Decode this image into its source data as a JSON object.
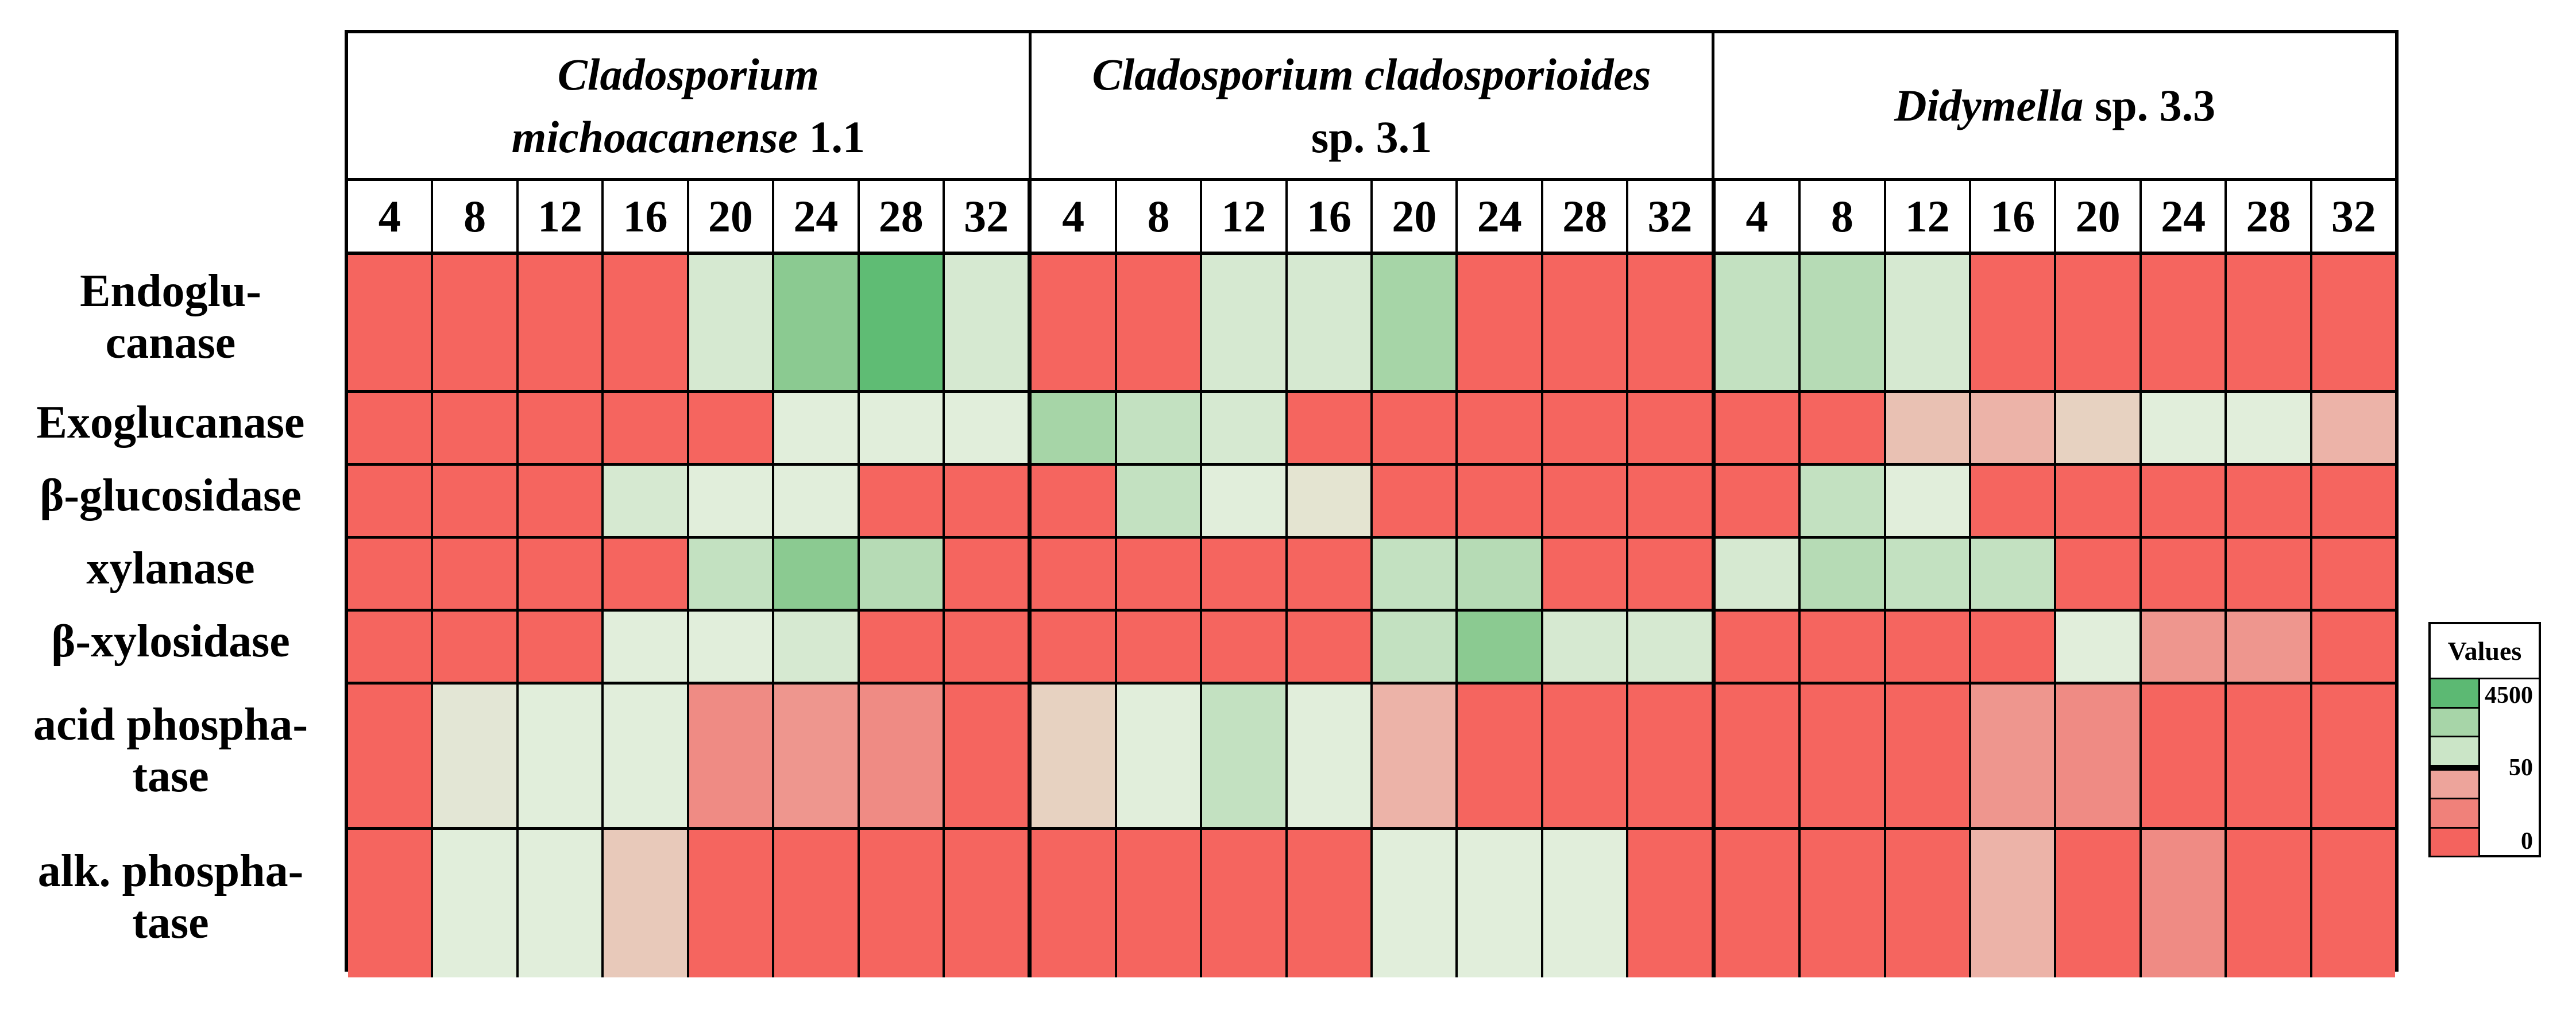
{
  "figure": {
    "background": "#ffffff"
  },
  "chart_data": {
    "type": "heatmap",
    "title": "",
    "description": "Enzyme activity heatmap for three fungal strains across cultivation days (4-32). Cell colors encode binned activity values from 0 (red) through 50 (pale transition) up to 4500 (green).",
    "col_groups": [
      {
        "lines": [
          [
            {
              "text": "Cladosporium",
              "italic": true
            }
          ],
          [
            {
              "text": "michoacanense",
              "italic": true
            },
            {
              "text": " 1.1",
              "italic": false
            }
          ]
        ]
      },
      {
        "lines": [
          [
            {
              "text": "Cladosporium cladosporioides",
              "italic": true
            }
          ],
          [
            {
              "text": "sp. 3.1",
              "italic": false
            }
          ]
        ]
      },
      {
        "lines": [
          [
            {
              "text": "Didymella",
              "italic": true
            },
            {
              "text": " sp. 3.3",
              "italic": false
            }
          ]
        ]
      }
    ],
    "time_points": [
      "4",
      "8",
      "12",
      "16",
      "20",
      "24",
      "28",
      "32"
    ],
    "row_labels": [
      [
        "Endoglu-",
        "canase"
      ],
      [
        "Exoglucanase"
      ],
      [
        "β-glucosidase"
      ],
      [
        "xylanase"
      ],
      [
        "β-xylosidase"
      ],
      [
        "acid phospha-",
        "tase"
      ],
      [
        "alk. phospha-",
        "tase"
      ]
    ],
    "value_scale": {
      "min": 0,
      "threshold": 50,
      "max": 4500
    },
    "palette": {
      "R": "#f5655f",
      "S": "#ef8b84",
      "P": "#ee968e",
      "LP": "#ecb3a8",
      "PT": "#e9c1b3",
      "TP": "#e8c9ba",
      "T": "#e7d2c1",
      "C": "#e4e4d1",
      "SG": "#e3e6d5",
      "G0": "#e1eedb",
      "G1": "#d6e9d1",
      "G2": "#c3e1c1",
      "G3": "#b6dbb5",
      "G4": "#a6d5a7",
      "G5": "#8bca91",
      "G6": "#5fbc74"
    },
    "palette_levels": {
      "R": "red (~0)",
      "S": "salmon",
      "P": "pink-salmon",
      "LP": "light pink",
      "PT": "pink-tan",
      "TP": "tan-pink",
      "T": "tan",
      "C": "cream (~50)",
      "SG": "pale sage (~50)",
      "G0": "palest green",
      "G1": "pale green",
      "G2": "light green",
      "G3": "light-medium green",
      "G4": "medium-light green",
      "G5": "medium green",
      "G6": "strong green (~4500)"
    },
    "cells": [
      [
        "R",
        "R",
        "R",
        "R",
        "G1",
        "G5",
        "G6",
        "G1",
        "R",
        "R",
        "G1",
        "G1",
        "G4",
        "R",
        "R",
        "R",
        "G2",
        "G3",
        "G1",
        "R",
        "R",
        "R",
        "R",
        "R"
      ],
      [
        "R",
        "R",
        "R",
        "R",
        "R",
        "G0",
        "G0",
        "G0",
        "G4",
        "G2",
        "G1",
        "R",
        "R",
        "R",
        "R",
        "R",
        "R",
        "R",
        "PT",
        "LP",
        "T",
        "G0",
        "G0",
        "LP"
      ],
      [
        "R",
        "R",
        "R",
        "G1",
        "G0",
        "G0",
        "R",
        "R",
        "R",
        "G2",
        "G0",
        "C",
        "R",
        "R",
        "R",
        "R",
        "R",
        "G2",
        "G0",
        "R",
        "R",
        "R",
        "R",
        "R"
      ],
      [
        "R",
        "R",
        "R",
        "R",
        "G2",
        "G5",
        "G3",
        "R",
        "R",
        "R",
        "R",
        "R",
        "G2",
        "G3",
        "R",
        "R",
        "G1",
        "G3",
        "G2",
        "G2",
        "R",
        "R",
        "R",
        "R"
      ],
      [
        "R",
        "R",
        "R",
        "G0",
        "G0",
        "G1",
        "R",
        "R",
        "R",
        "R",
        "R",
        "R",
        "G2",
        "G5",
        "G1",
        "G1",
        "R",
        "R",
        "R",
        "R",
        "G0",
        "P",
        "P",
        "R"
      ],
      [
        "R",
        "SG",
        "G0",
        "G0",
        "S",
        "P",
        "S",
        "R",
        "T",
        "G0",
        "G2",
        "G0",
        "LP",
        "R",
        "R",
        "R",
        "R",
        "R",
        "R",
        "P",
        "S",
        "R",
        "R",
        "R"
      ],
      [
        "R",
        "G0",
        "G0",
        "TP",
        "R",
        "R",
        "R",
        "R",
        "R",
        "R",
        "R",
        "R",
        "G0",
        "G0",
        "G0",
        "R",
        "R",
        "R",
        "R",
        "LP",
        "R",
        "S",
        "R",
        "R"
      ]
    ],
    "legend": {
      "title": "Values",
      "swatches": [
        "#5cb973",
        "#a7d5a8",
        "#cbe5c7",
        "#eda49b",
        "#f0817a",
        "#f4635e"
      ],
      "divider_after_swatch": 3,
      "tick_top": "4500",
      "tick_mid": "50",
      "tick_bottom": "0"
    }
  }
}
